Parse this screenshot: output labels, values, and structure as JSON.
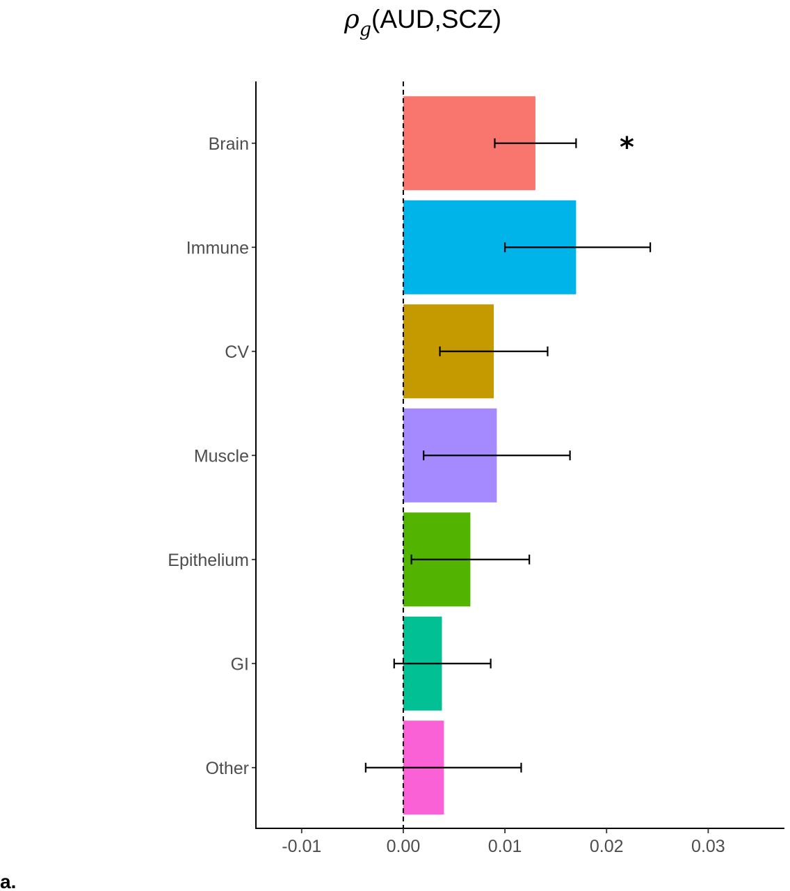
{
  "chart_data": {
    "type": "bar",
    "orientation": "horizontal",
    "title": {
      "symbol": "ρ",
      "subscript": "g",
      "args": "(AUD,SCZ)"
    },
    "xlabel": "",
    "ylabel": "",
    "xlim": [
      -0.0145,
      0.0375
    ],
    "x_ticks": [
      -0.01,
      0.0,
      0.01,
      0.02,
      0.03
    ],
    "x_tick_labels": [
      "-0.01",
      "0.00",
      "0.01",
      "0.02",
      "0.03"
    ],
    "reference_line": 0,
    "grid": false,
    "legend": "none",
    "categories": [
      "Brain",
      "Immune",
      "CV",
      "Muscle",
      "Epithelium",
      "GI",
      "Other"
    ],
    "values": [
      0.013,
      0.017,
      0.0089,
      0.0092,
      0.0066,
      0.0038,
      0.004
    ],
    "error_low": [
      0.009,
      0.01,
      0.0036,
      0.002,
      0.0008,
      -0.0009,
      -0.0037
    ],
    "error_high": [
      0.017,
      0.0243,
      0.0142,
      0.0164,
      0.0124,
      0.0086,
      0.0116
    ],
    "colors": [
      "#F8766D",
      "#00B4EA",
      "#C49A00",
      "#A58AFF",
      "#53B400",
      "#00C094",
      "#FB61D7"
    ],
    "annotations": [
      {
        "category": "Brain",
        "text": "*",
        "x": 0.022
      }
    ]
  },
  "panel_label": "a."
}
